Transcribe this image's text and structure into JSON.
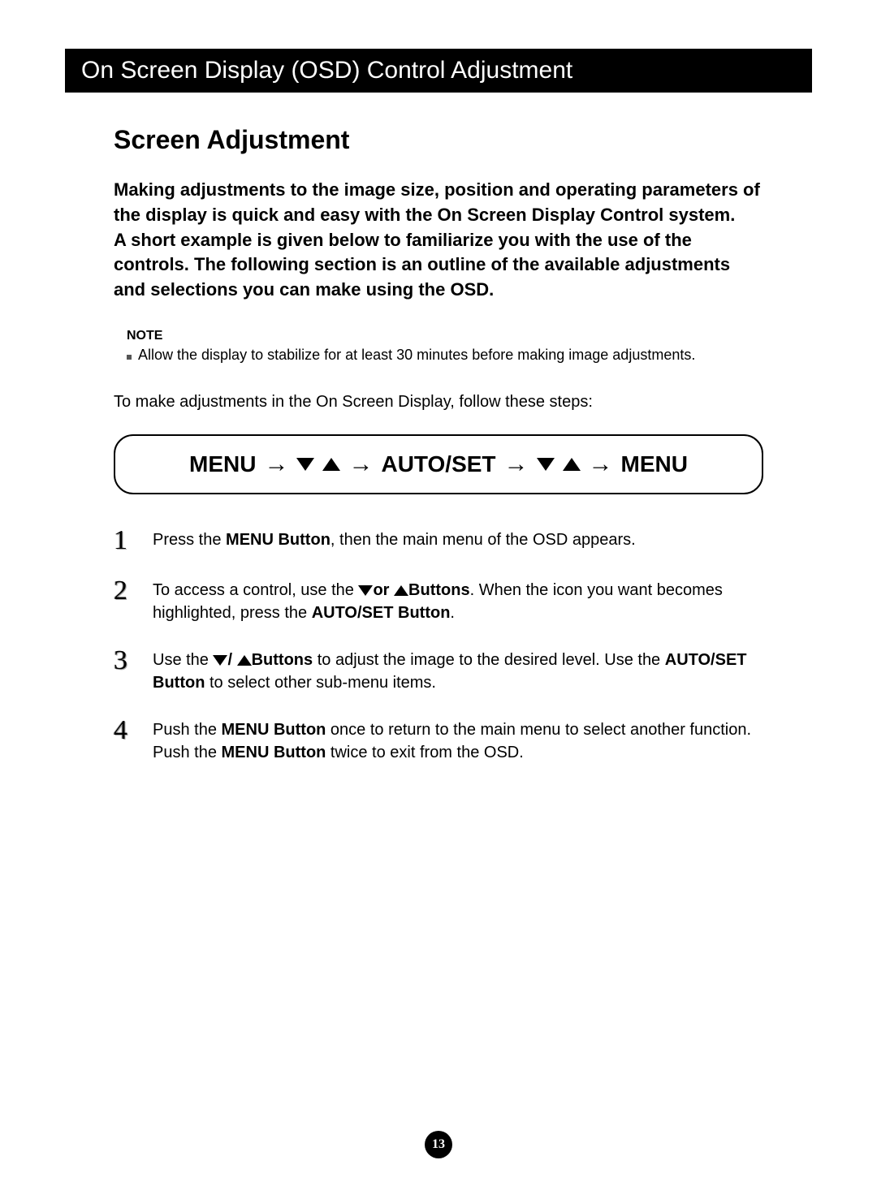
{
  "header": {
    "title": "On Screen Display (OSD) Control Adjustment"
  },
  "section": {
    "title": "Screen Adjustment"
  },
  "intro": {
    "p1": "Making adjustments to the image size, position and operating parameters of the display is quick and easy with the On Screen Display Control system.",
    "p2": "A short example is given below to familiarize you with the use of the controls. The following section is an outline of the available adjustments and selections you can make using the OSD."
  },
  "note": {
    "label": "NOTE",
    "item": "Allow the display to stabilize for at least 30 minutes before making image adjustments."
  },
  "lead_in": "To make adjustments in the On Screen Display, follow these steps:",
  "flow": {
    "menu1": "MENU",
    "autoset": "AUTO/SET",
    "menu2": "MENU"
  },
  "steps": {
    "s1": {
      "num": "1",
      "pre": "Press the ",
      "b1": "MENU Button",
      "post": ", then the main menu of the OSD appears."
    },
    "s2": {
      "num": "2",
      "a": "To access a control, use the ",
      "or": "or ",
      "b_buttons": "Buttons",
      "b": ". When the icon you want becomes highlighted, press the ",
      "b_autoset": "AUTO/SET Button",
      "c": "."
    },
    "s3": {
      "num": "3",
      "a": "Use the ",
      "slash": "/ ",
      "b_buttons": "Buttons",
      "b": " to adjust the image to the desired level. Use the ",
      "b_autoset": "AUTO/SET Button",
      "c": " to select other sub-menu items."
    },
    "s4": {
      "num": "4",
      "a": "Push the ",
      "b_menu1": "MENU Button",
      "b": " once to return to the main menu to select another function. Push the ",
      "b_menu2": "MENU Button",
      "c": " twice to exit from the OSD."
    }
  },
  "page_number": "13",
  "colors": {
    "header_bg": "#000000",
    "header_fg": "#ffffff",
    "text": "#000000",
    "page_bg": "#ffffff"
  }
}
